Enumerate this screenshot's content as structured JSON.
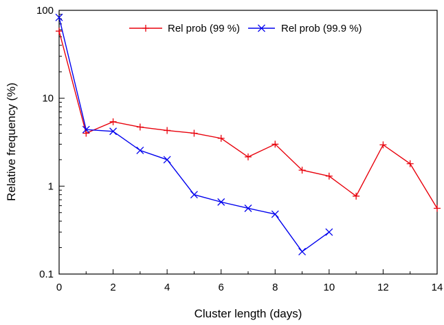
{
  "chart_data": {
    "type": "line",
    "xlabel": "Cluster length (days)",
    "ylabel": "Relative frequency (%)",
    "xlim": [
      0,
      14
    ],
    "ylim": [
      0.1,
      100
    ],
    "yscale": "log",
    "x_ticks": [
      "0",
      "2",
      "4",
      "6",
      "8",
      "10",
      "12",
      "14"
    ],
    "x_tick_values": [
      0,
      2,
      4,
      6,
      8,
      10,
      12,
      14
    ],
    "y_ticks": [
      "0.1",
      "1",
      "10",
      "100"
    ],
    "y_tick_values": [
      0.1,
      1,
      10,
      100
    ],
    "grid": false,
    "legend_position": "top",
    "series": [
      {
        "name": "Rel prob (99 %)",
        "color": "#e8000b",
        "marker": "plus",
        "x": [
          0,
          1,
          2,
          3,
          4,
          5,
          6,
          7,
          8,
          9,
          10,
          11,
          12,
          13,
          14
        ],
        "values": [
          58,
          4.0,
          5.4,
          4.7,
          4.3,
          4.0,
          3.5,
          2.15,
          3.0,
          1.52,
          1.3,
          0.77,
          2.95,
          1.8,
          0.56
        ]
      },
      {
        "name": "Rel prob (99.9 %)",
        "color": "#0000ee",
        "marker": "x",
        "x": [
          0,
          1,
          2,
          3,
          4,
          5,
          6,
          7,
          8,
          9,
          10
        ],
        "values": [
          83,
          4.4,
          4.2,
          2.55,
          2.0,
          0.8,
          0.66,
          0.56,
          0.48,
          0.18,
          0.3
        ]
      }
    ]
  }
}
